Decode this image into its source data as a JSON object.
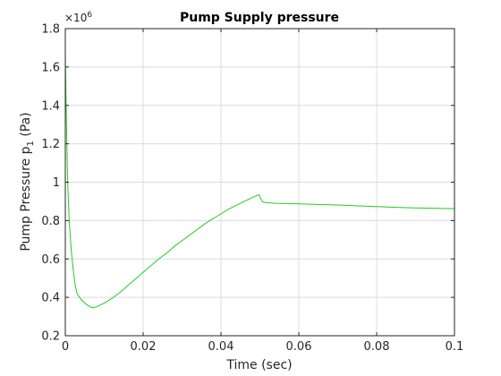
{
  "chart_data": {
    "type": "line",
    "title": "Pump Supply pressure",
    "xlabel": "Time (sec)",
    "ylabel_main": "Pump Pressure p",
    "ylabel_sub": "1",
    "ylabel_unit": "(Pa)",
    "y_exponent_base": "×10",
    "y_exponent_power": "6",
    "xlim": [
      0,
      0.1
    ],
    "ylim": [
      0.2,
      1.8
    ],
    "x_ticks": [
      0,
      0.02,
      0.04,
      0.06,
      0.08,
      0.1
    ],
    "x_tick_labels": [
      "0",
      "0.02",
      "0.04",
      "0.06",
      "0.08",
      "0.1"
    ],
    "y_ticks": [
      0.2,
      0.4,
      0.6,
      0.8,
      1.0,
      1.2,
      1.4,
      1.6,
      1.8
    ],
    "y_tick_labels": [
      "0.2",
      "0.4",
      "0.6",
      "0.8",
      "1",
      "1.2",
      "1.4",
      "1.6",
      "1.8"
    ],
    "grid": true,
    "line_color": "#22cc22",
    "series": [
      {
        "x": [
          0,
          0.0003,
          0.0006,
          0.001,
          0.0015,
          0.002,
          0.0025,
          0.003,
          0.004,
          0.005,
          0.006,
          0.007,
          0.008,
          0.009,
          0.01,
          0.012,
          0.014,
          0.016,
          0.018,
          0.02,
          0.022,
          0.024,
          0.026,
          0.028,
          0.03,
          0.032,
          0.034,
          0.036,
          0.038,
          0.04,
          0.042,
          0.044,
          0.046,
          0.048,
          0.0498,
          0.0502,
          0.0506,
          0.051,
          0.052,
          0.054,
          0.056,
          0.058,
          0.06,
          0.065,
          0.07,
          0.075,
          0.08,
          0.085,
          0.09,
          0.095,
          0.1
        ],
        "y": [
          1.66,
          1.3,
          1.0,
          0.8,
          0.65,
          0.55,
          0.47,
          0.42,
          0.39,
          0.37,
          0.355,
          0.345,
          0.35,
          0.36,
          0.37,
          0.395,
          0.425,
          0.46,
          0.495,
          0.53,
          0.565,
          0.6,
          0.63,
          0.665,
          0.695,
          0.725,
          0.755,
          0.785,
          0.81,
          0.835,
          0.86,
          0.88,
          0.9,
          0.92,
          0.935,
          0.915,
          0.9,
          0.895,
          0.893,
          0.89,
          0.889,
          0.888,
          0.887,
          0.884,
          0.881,
          0.877,
          0.873,
          0.869,
          0.866,
          0.864,
          0.862
        ]
      }
    ]
  }
}
